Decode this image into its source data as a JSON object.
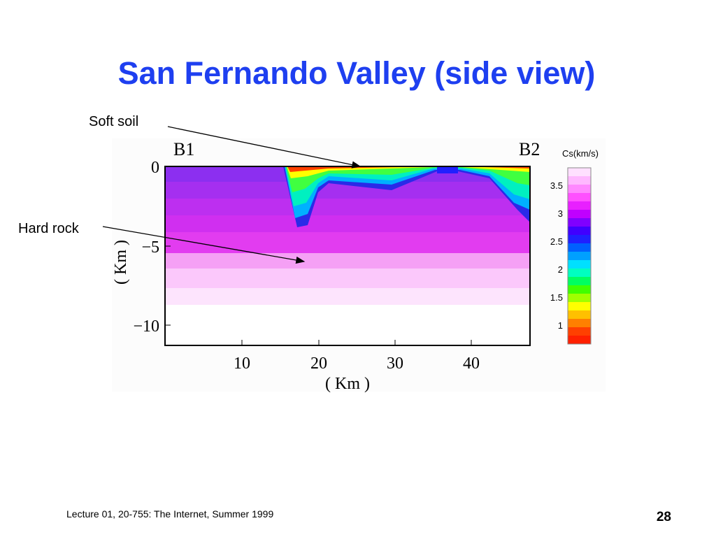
{
  "slide": {
    "title": "San Fernando Valley (side view)",
    "annotations": [
      "Soft soil",
      "Hard rock"
    ],
    "figure": {
      "left_label": "B1",
      "right_label": "B2",
      "yticks": [
        "0",
        "−5",
        "−10"
      ],
      "xticks": [
        "10",
        "20",
        "30",
        "40"
      ],
      "y_label": "( Km )",
      "x_label": "( Km )",
      "colorbar_title": "Cs(km/s)",
      "colorbar_ticks": [
        "3.5",
        "3",
        "2.5",
        "2",
        "1.5",
        "1"
      ]
    },
    "footer": "Lecture 01, 20-755: The Internet, Summer 1999",
    "page_number": "28"
  }
}
